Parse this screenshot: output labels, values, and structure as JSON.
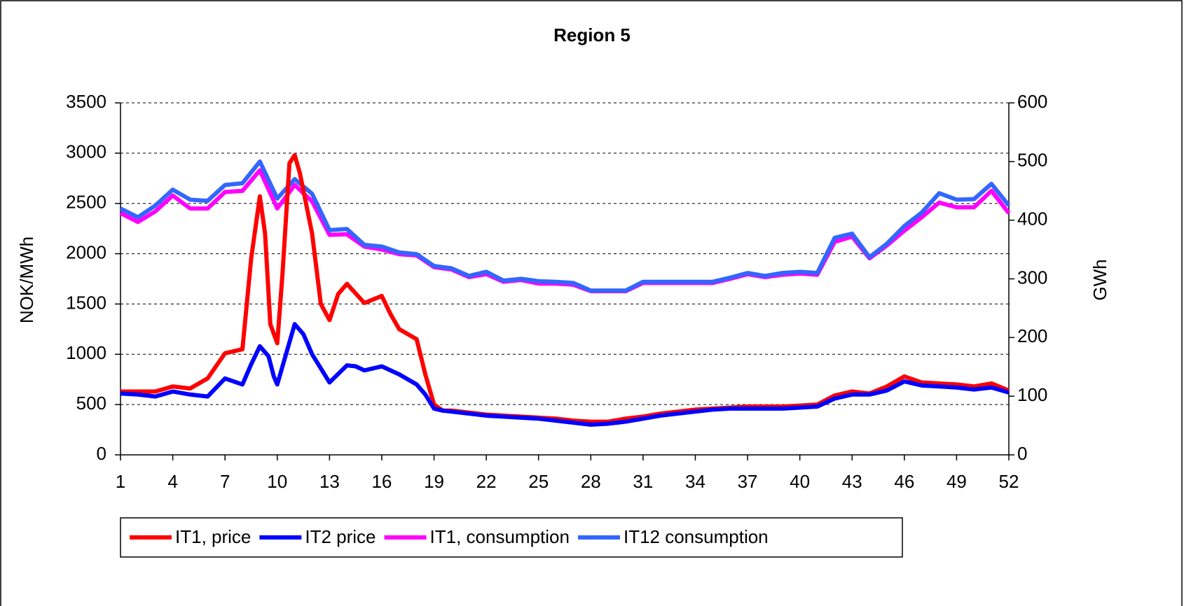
{
  "chart_data": {
    "type": "line",
    "title": "Region 5",
    "y_label": "NOK/MWh",
    "y2_label": "GWh",
    "x": [
      1,
      2,
      3,
      4,
      5,
      6,
      7,
      8,
      9,
      10,
      11,
      12,
      13,
      14,
      15,
      16,
      17,
      18,
      19,
      20,
      21,
      22,
      23,
      24,
      25,
      26,
      27,
      28,
      29,
      30,
      31,
      32,
      33,
      34,
      35,
      36,
      37,
      38,
      39,
      40,
      41,
      42,
      43,
      44,
      45,
      46,
      47,
      48,
      49,
      50,
      51,
      52
    ],
    "xlim": [
      1,
      52
    ],
    "xticks": [
      1,
      4,
      7,
      10,
      13,
      16,
      19,
      22,
      25,
      28,
      31,
      34,
      37,
      40,
      43,
      46,
      49,
      52
    ],
    "ylim": [
      0,
      3500
    ],
    "yticks": [
      0,
      500,
      1000,
      1500,
      2000,
      2500,
      3000,
      3500
    ],
    "y2lim": [
      0,
      600
    ],
    "y2ticks": [
      0,
      100,
      200,
      300,
      400,
      500,
      600
    ],
    "grid": true,
    "legend": "bottom",
    "series": [
      {
        "name": "IT1, price",
        "color": "#ff0000",
        "x": [
          1,
          2,
          3,
          4,
          5,
          6,
          7,
          8,
          8.5,
          9,
          9.3,
          9.6,
          10,
          10.3,
          10.7,
          11,
          11.3,
          12,
          12.5,
          13,
          13.5,
          14,
          15,
          16,
          16.5,
          17,
          18,
          18.5,
          19,
          19.5,
          20,
          21,
          22,
          23,
          24,
          25,
          26,
          27,
          28,
          29,
          30,
          31,
          32,
          33,
          34,
          35,
          36,
          37,
          38,
          39,
          40,
          41,
          42,
          43,
          44,
          45,
          46,
          47,
          48,
          49,
          50,
          51,
          52
        ],
        "values": [
          630,
          630,
          630,
          680,
          660,
          760,
          1010,
          1050,
          1950,
          2570,
          2200,
          1300,
          1110,
          1800,
          2900,
          2980,
          2800,
          2200,
          1500,
          1340,
          1600,
          1700,
          1510,
          1580,
          1400,
          1250,
          1150,
          800,
          500,
          440,
          440,
          420,
          400,
          390,
          380,
          370,
          360,
          340,
          330,
          330,
          360,
          380,
          410,
          430,
          450,
          460,
          470,
          480,
          480,
          480,
          490,
          500,
          590,
          630,
          610,
          680,
          780,
          720,
          710,
          700,
          680,
          710,
          640
        ]
      },
      {
        "name": "IT2 price",
        "color": "#0000ff",
        "x": [
          1,
          2,
          3,
          4,
          5,
          6,
          7,
          8,
          8.5,
          9,
          9.5,
          9.8,
          10,
          10.5,
          11,
          11.5,
          12,
          13,
          14,
          14.5,
          15,
          16,
          17,
          18,
          18.5,
          19,
          19.5,
          20,
          21,
          22,
          23,
          24,
          25,
          26,
          27,
          28,
          29,
          30,
          31,
          32,
          33,
          34,
          35,
          36,
          37,
          38,
          39,
          40,
          41,
          42,
          43,
          44,
          45,
          46,
          47,
          48,
          49,
          50,
          51,
          52
        ],
        "values": [
          610,
          600,
          580,
          630,
          600,
          580,
          760,
          700,
          900,
          1080,
          980,
          780,
          700,
          1000,
          1300,
          1200,
          1000,
          720,
          890,
          880,
          840,
          880,
          800,
          700,
          600,
          460,
          440,
          430,
          410,
          390,
          380,
          370,
          360,
          340,
          320,
          300,
          310,
          330,
          360,
          390,
          410,
          430,
          450,
          460,
          460,
          460,
          460,
          470,
          480,
          560,
          600,
          600,
          640,
          730,
          690,
          680,
          670,
          650,
          670,
          620
        ]
      },
      {
        "name": "IT1, consumption",
        "color": "#ff00ff",
        "axis": "y2",
        "values": [
          412,
          397,
          415,
          442,
          420,
          420,
          448,
          450,
          485,
          420,
          460,
          432,
          375,
          376,
          355,
          350,
          342,
          340,
          320,
          316,
          303,
          308,
          295,
          298,
          292,
          292,
          290,
          279,
          279,
          279,
          293,
          293,
          293,
          293,
          293,
          300,
          308,
          303,
          307,
          309,
          307,
          363,
          372,
          335,
          357,
          382,
          405,
          430,
          422,
          422,
          450,
          412
        ]
      },
      {
        "name": "IT12 consumption",
        "color": "#3366ff",
        "axis": "y2",
        "values": [
          420,
          405,
          425,
          452,
          435,
          433,
          460,
          463,
          500,
          437,
          470,
          445,
          383,
          385,
          358,
          355,
          345,
          342,
          322,
          318,
          305,
          312,
          297,
          300,
          296,
          295,
          293,
          280,
          280,
          280,
          295,
          295,
          295,
          295,
          295,
          302,
          310,
          305,
          310,
          312,
          310,
          370,
          377,
          337,
          360,
          390,
          413,
          446,
          435,
          436,
          462,
          425
        ]
      }
    ]
  }
}
